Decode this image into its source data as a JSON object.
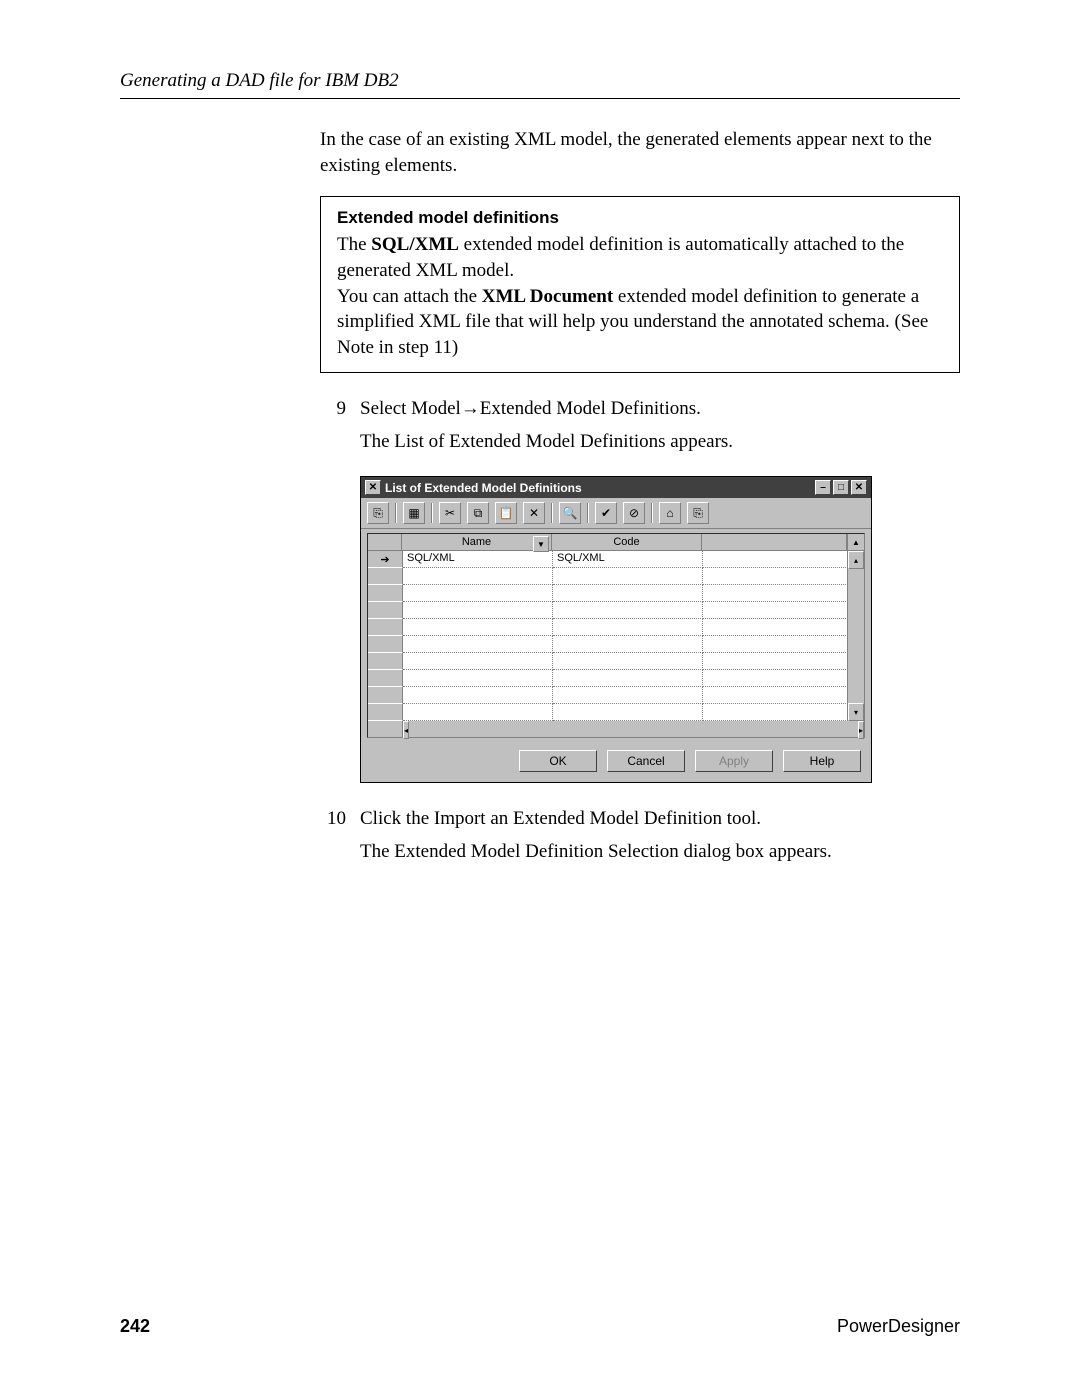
{
  "header": {
    "running": "Generating a DAD file for IBM DB2"
  },
  "intro_para": "In the case of an existing XML model, the generated elements appear next to the existing elements.",
  "note": {
    "title": "Extended model definitions",
    "line1a": "The ",
    "line1b": "SQL/XML",
    "line1c": " extended model definition is automatically attached to the generated XML model.",
    "line2a": "You can attach the ",
    "line2b": "XML Document",
    "line2c": " extended model definition to generate a simplified XML file that will help you understand the annotated schema. (See Note in step 11)"
  },
  "steps": {
    "s9": {
      "num": "9",
      "text": "Select Model→Extended Model Definitions.",
      "after": "The List of Extended Model Definitions appears."
    },
    "s10": {
      "num": "10",
      "text": "Click the Import an Extended Model Definition tool.",
      "after": "The Extended Model Definition Selection dialog box appears."
    }
  },
  "dialog": {
    "title": "List of Extended Model Definitions",
    "sys_icon": "✕",
    "min": "–",
    "max": "□",
    "close": "✕",
    "toolbar_icons": [
      "⎘",
      "▦",
      "✂",
      "⧉",
      "📋",
      "✕",
      "🔍",
      "✔",
      "⊘",
      "⌂",
      "⎘"
    ],
    "columns": {
      "name": "Name",
      "code": "Code"
    },
    "row_arrow": "➔",
    "rows": [
      {
        "name": "SQL/XML",
        "code": "SQL/XML"
      },
      {
        "name": "",
        "code": ""
      },
      {
        "name": "",
        "code": ""
      },
      {
        "name": "",
        "code": ""
      },
      {
        "name": "",
        "code": ""
      },
      {
        "name": "",
        "code": ""
      },
      {
        "name": "",
        "code": ""
      },
      {
        "name": "",
        "code": ""
      },
      {
        "name": "",
        "code": ""
      },
      {
        "name": "",
        "code": ""
      }
    ],
    "buttons": {
      "ok": "OK",
      "cancel": "Cancel",
      "apply": "Apply",
      "help": "Help"
    }
  },
  "footer": {
    "page": "242",
    "product": "PowerDesigner"
  }
}
